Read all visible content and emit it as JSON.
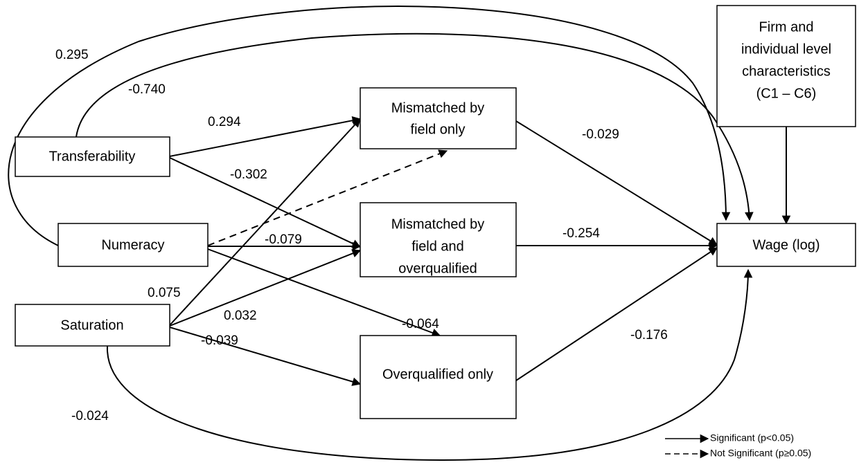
{
  "nodes": [
    {
      "lines": [
        "Transferability"
      ]
    },
    {
      "lines": [
        "Numeracy"
      ]
    },
    {
      "lines": [
        "Saturation"
      ]
    },
    {
      "lines": [
        "Mismatched by",
        "field only"
      ]
    },
    {
      "lines": [
        "Mismatched by",
        "field and",
        "overqualified"
      ]
    },
    {
      "lines": [
        "Overqualified only"
      ]
    },
    {
      "lines": [
        "Wage (log)"
      ]
    },
    {
      "lines": [
        "Firm and",
        "individual level",
        "characteristics",
        "(C1 – C6)"
      ]
    }
  ],
  "edge_labels": [
    "0.295",
    "-0.740",
    "0.294",
    "-0.302",
    "-0.079",
    "0.075",
    "0.032",
    "-0.064",
    "-0.039",
    "-0.024",
    "-0.029",
    "-0.254",
    "-0.176"
  ],
  "legend": [
    "Significant (p<0.05)",
    "Not Significant (p≥0.05)"
  ]
}
